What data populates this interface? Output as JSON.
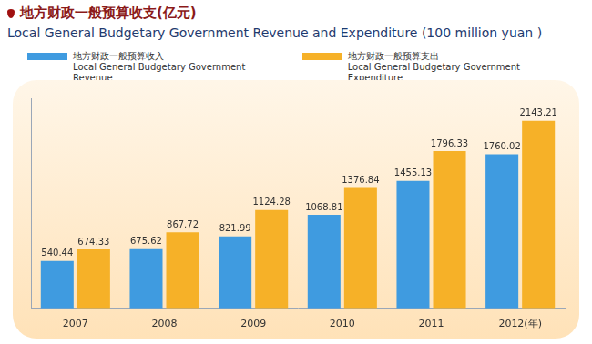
{
  "chart_data": {
    "type": "bar",
    "title": "地方财政一般预算收支(亿元)",
    "subtitle": "Local General Budgetary Government Revenue and Expenditure (100 million yuan )",
    "categories": [
      "2007",
      "2008",
      "2009",
      "2010",
      "2011",
      "2012(年)"
    ],
    "series": [
      {
        "name": "地方财政一般预算收入\nLocal General Budgetary Government Revenue",
        "color": "#3f9be0",
        "values": [
          540.44,
          675.62,
          821.99,
          1068.81,
          1455.13,
          1760.02
        ]
      },
      {
        "name": "地方财政一般预算支出\nLocal General Budgetary Government Expenditure",
        "color": "#f6b128",
        "values": [
          674.33,
          867.72,
          1124.28,
          1376.84,
          1796.33,
          2143.21
        ]
      }
    ],
    "ylim": [
      0,
      2400
    ],
    "grid": false,
    "legend": "top-left",
    "data_labels": true,
    "tick_labels": "x"
  }
}
